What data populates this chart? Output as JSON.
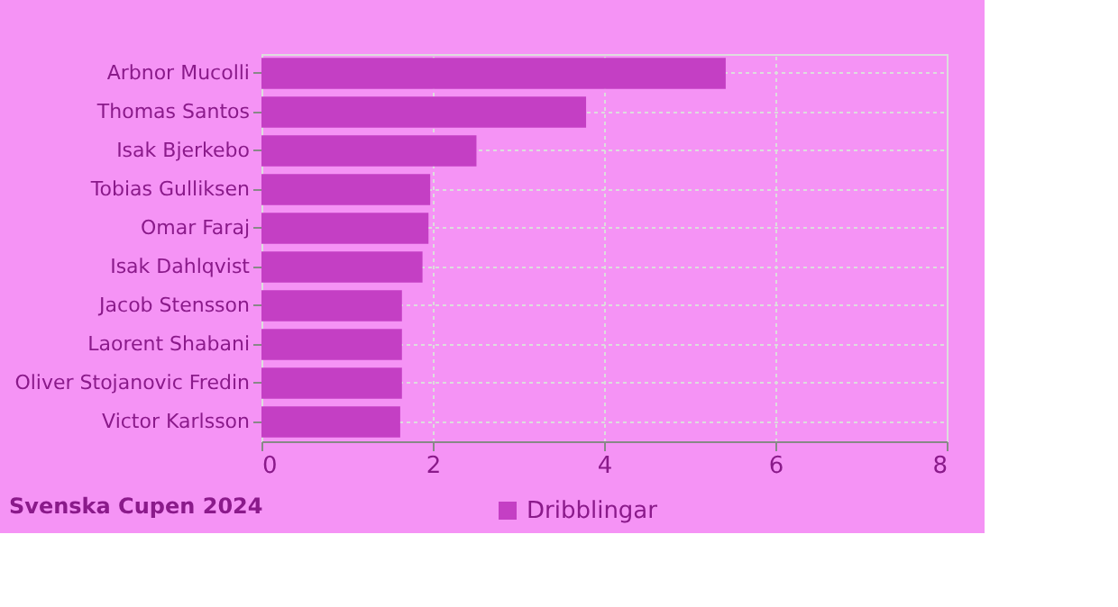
{
  "chart_data": {
    "type": "bar",
    "orientation": "horizontal",
    "categories": [
      "Arbnor Mucolli",
      "Thomas Santos",
      "Isak Bjerkebo",
      "Tobias Gulliksen",
      "Omar Faraj",
      "Isak Dahlqvist",
      "Jacob Stensson",
      "Laorent Shabani",
      "Oliver Stojanovic Fredin",
      "Victor Karlsson"
    ],
    "series": [
      {
        "name": "Dribblingar",
        "color": "#c43fc4",
        "values": [
          5.42,
          3.79,
          2.51,
          1.97,
          1.95,
          1.88,
          1.64,
          1.64,
          1.64,
          1.62
        ]
      }
    ],
    "xlim": [
      0,
      8
    ],
    "xticks": [
      0,
      2,
      4,
      6,
      8
    ],
    "grid": true,
    "legend": "bottom",
    "annotations": [
      "Svenska Cupen 2024"
    ]
  }
}
